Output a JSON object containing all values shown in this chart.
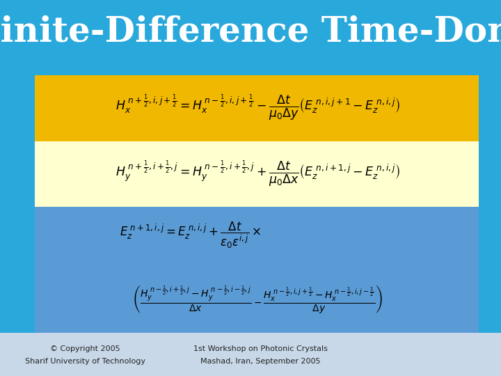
{
  "title": "Finite-Difference Time-Domain",
  "title_color": "#FFFFFF",
  "title_fontsize": 36,
  "bg_color": "#29A8DC",
  "eq1_bg": "#F0B800",
  "eq2_bg": "#FFFFD0",
  "eq3_bg": "#5B9BD5",
  "footer_bg": "#C8D8E8",
  "eq_color": "#000000",
  "footer_text_color": "#222222",
  "copyright_line1": "© Copyright 2005",
  "copyright_line2": "Sharif University of Technology",
  "workshop_line1": "1st Workshop on Photonic Crystals",
  "workshop_line2": "Mashad, Iran, September 2005"
}
